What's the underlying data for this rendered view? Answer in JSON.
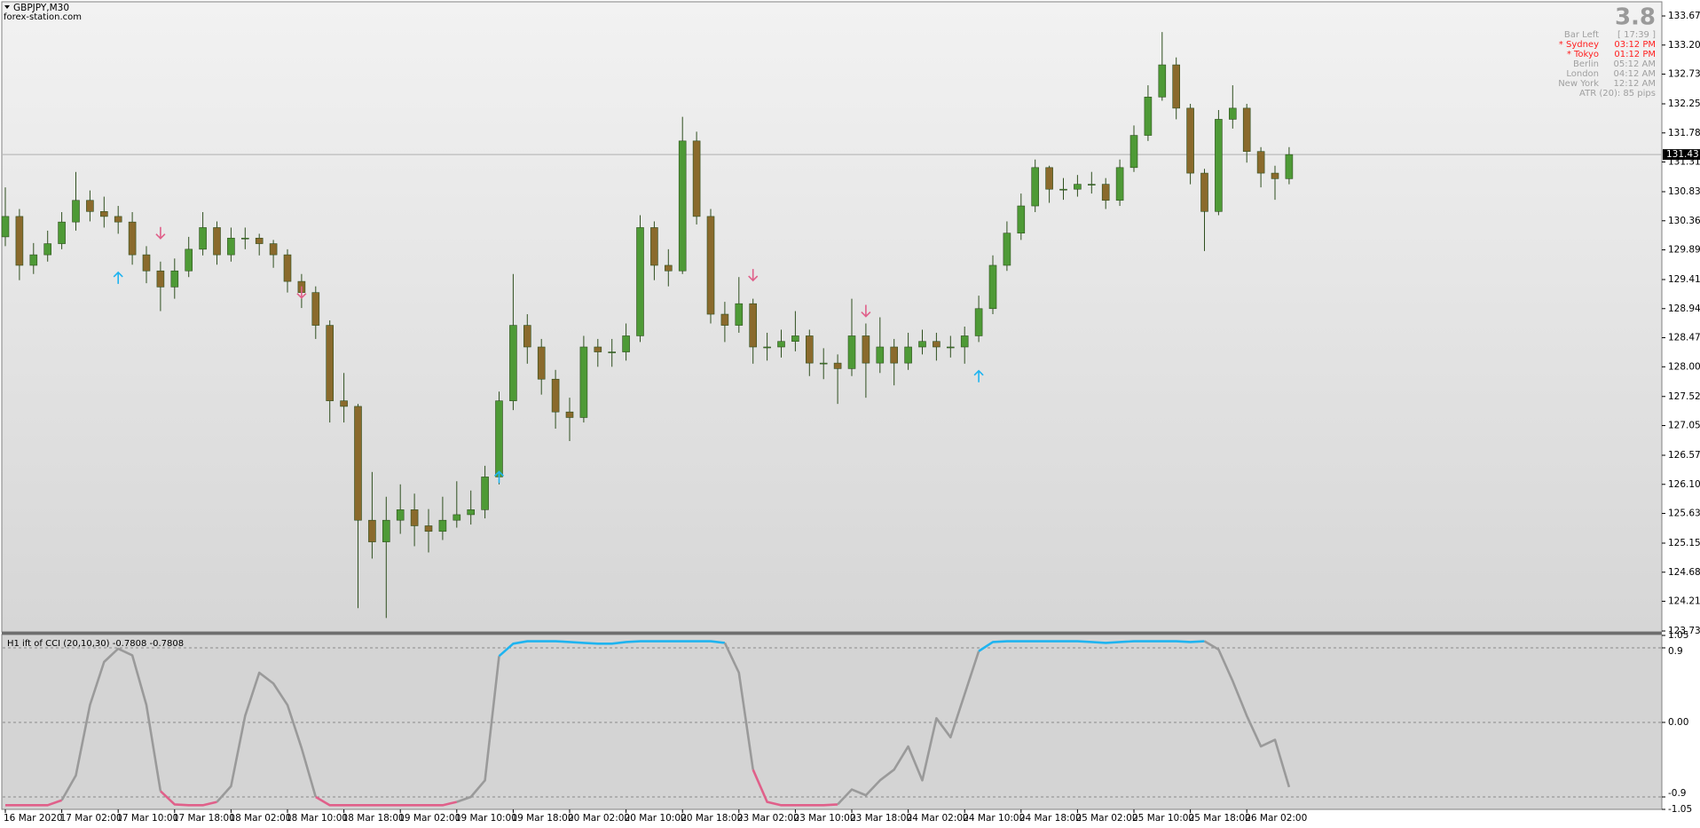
{
  "header": {
    "symbol": "GBPJPY,M30",
    "site": "forex-station.com"
  },
  "info_panel": {
    "countdown": "3.8",
    "rows": [
      {
        "label": "Bar Left",
        "time": "[ 17:39 ]",
        "color": "#a0a0a0"
      },
      {
        "label": "* Sydney",
        "time": "03:12 PM",
        "color": "#ff2020"
      },
      {
        "label": "* Tokyo",
        "time": "01:12 PM",
        "color": "#ff2020"
      },
      {
        "label": "Berlin",
        "time": "05:12 AM",
        "color": "#a0a0a0"
      },
      {
        "label": "London",
        "time": "04:12 AM",
        "color": "#a0a0a0"
      },
      {
        "label": "New York",
        "time": "12:12 AM",
        "color": "#a0a0a0"
      }
    ],
    "footer": "ATR (20): 85 pips"
  },
  "chart_data": [
    {
      "type": "candlestick",
      "categories": [
        "16 Mar 2020",
        null,
        null,
        null,
        "17 Mar 02:00",
        null,
        null,
        null,
        "17 Mar 10:00",
        null,
        null,
        null,
        "17 Mar 18:00",
        null,
        null,
        null,
        "18 Mar 02:00",
        null,
        null,
        null,
        "18 Mar 10:00",
        null,
        null,
        null,
        "18 Mar 18:00",
        null,
        null,
        null,
        "19 Mar 02:00",
        null,
        null,
        null,
        "19 Mar 10:00",
        null,
        null,
        null,
        "19 Mar 18:00",
        null,
        null,
        null,
        "20 Mar 02:00",
        null,
        null,
        null,
        "20 Mar 10:00",
        null,
        null,
        null,
        "20 Mar 18:00",
        null,
        null,
        null,
        "23 Mar 02:00",
        null,
        null,
        null,
        "23 Mar 10:00",
        null,
        null,
        null,
        "23 Mar 18:00",
        null,
        null,
        null,
        "24 Mar 02:00",
        null,
        null,
        null,
        "24 Mar 10:00",
        null,
        null,
        null,
        "24 Mar 18:00",
        null,
        null,
        null,
        "25 Mar 02:00",
        null,
        null,
        null,
        "25 Mar 10:00",
        null,
        null,
        null,
        "25 Mar 18:00",
        null,
        null,
        null,
        "26 Mar 02:00",
        null,
        null,
        null
      ],
      "open": [
        130.1,
        130.43,
        129.64,
        129.81,
        129.99,
        130.34,
        130.69,
        130.51,
        130.43,
        130.34,
        129.81,
        129.55,
        129.29,
        129.55,
        129.9,
        130.25,
        129.81,
        130.08,
        130.08,
        129.99,
        129.81,
        129.38,
        129.2,
        128.67,
        127.45,
        127.36,
        125.52,
        125.17,
        125.52,
        125.69,
        125.43,
        125.34,
        125.52,
        125.61,
        125.69,
        126.22,
        127.45,
        128.67,
        128.32,
        127.8,
        127.27,
        127.18,
        128.32,
        128.24,
        128.24,
        128.5,
        130.25,
        129.64,
        129.55,
        131.65,
        130.43,
        128.85,
        128.67,
        129.02,
        128.32,
        128.32,
        128.41,
        128.5,
        128.06,
        128.06,
        127.97,
        128.5,
        128.06,
        128.32,
        128.06,
        128.32,
        128.41,
        128.32,
        128.32,
        128.5,
        128.94,
        129.64,
        130.16,
        130.6,
        131.22,
        130.87,
        130.87,
        130.95,
        130.95,
        130.69,
        131.22,
        131.74,
        132.36,
        132.88,
        132.18,
        131.13,
        130.51,
        132.0,
        132.18,
        131.48,
        131.13,
        131.04
      ],
      "high": [
        130.9,
        130.55,
        130.0,
        130.2,
        130.5,
        131.15,
        130.85,
        130.75,
        130.6,
        130.5,
        129.95,
        129.7,
        129.75,
        130.1,
        130.5,
        130.35,
        130.25,
        130.25,
        130.15,
        130.05,
        129.9,
        129.5,
        129.3,
        128.75,
        127.9,
        127.4,
        126.3,
        125.9,
        126.1,
        125.95,
        125.7,
        125.9,
        126.15,
        126.0,
        126.4,
        127.6,
        129.5,
        128.85,
        128.45,
        127.95,
        127.5,
        128.5,
        128.45,
        128.45,
        128.7,
        130.45,
        130.35,
        129.9,
        132.04,
        131.8,
        130.55,
        129.05,
        129.45,
        129.1,
        128.55,
        128.6,
        128.9,
        128.6,
        128.3,
        128.2,
        129.1,
        128.7,
        128.8,
        128.45,
        128.55,
        128.6,
        128.55,
        128.5,
        128.65,
        129.15,
        129.8,
        130.35,
        130.8,
        131.35,
        131.25,
        131.05,
        131.1,
        131.15,
        131.05,
        131.35,
        131.9,
        132.55,
        133.41,
        133.0,
        132.25,
        131.2,
        132.15,
        132.55,
        132.25,
        131.55,
        131.25,
        131.55
      ],
      "low": [
        129.95,
        129.4,
        129.5,
        129.7,
        129.9,
        130.2,
        130.35,
        130.25,
        130.15,
        129.65,
        129.35,
        128.9,
        129.1,
        129.45,
        129.8,
        129.65,
        129.7,
        129.9,
        129.8,
        129.6,
        129.2,
        128.95,
        128.45,
        127.1,
        127.1,
        124.1,
        124.9,
        123.94,
        125.3,
        125.1,
        125.0,
        125.2,
        125.4,
        125.45,
        125.55,
        126.1,
        127.3,
        128.05,
        127.55,
        127.0,
        126.8,
        127.1,
        128.0,
        128.0,
        128.1,
        128.4,
        129.4,
        129.3,
        129.5,
        130.3,
        128.7,
        128.4,
        128.55,
        128.05,
        128.1,
        128.15,
        128.25,
        127.85,
        127.8,
        127.4,
        127.85,
        127.5,
        127.9,
        127.7,
        127.95,
        128.2,
        128.1,
        128.15,
        128.05,
        128.4,
        128.85,
        129.55,
        130.05,
        130.5,
        130.65,
        130.7,
        130.75,
        130.8,
        130.55,
        130.6,
        131.15,
        131.65,
        132.3,
        132.0,
        130.95,
        129.87,
        130.45,
        131.85,
        131.3,
        130.9,
        130.7,
        130.95
      ],
      "close": [
        130.43,
        129.64,
        129.81,
        129.99,
        130.34,
        130.69,
        130.51,
        130.43,
        130.34,
        129.81,
        129.55,
        129.29,
        129.55,
        129.9,
        130.25,
        129.81,
        130.08,
        130.08,
        129.99,
        129.81,
        129.38,
        129.2,
        128.67,
        127.45,
        127.36,
        125.52,
        125.17,
        125.52,
        125.69,
        125.43,
        125.34,
        125.52,
        125.61,
        125.69,
        126.22,
        127.45,
        128.67,
        128.32,
        127.8,
        127.27,
        127.18,
        128.32,
        128.24,
        128.24,
        128.5,
        130.25,
        129.64,
        129.55,
        131.65,
        130.43,
        128.85,
        128.67,
        129.02,
        128.32,
        128.32,
        128.41,
        128.5,
        128.06,
        128.06,
        127.97,
        128.5,
        128.06,
        128.32,
        128.06,
        128.32,
        128.41,
        128.32,
        128.32,
        128.5,
        128.94,
        129.64,
        130.16,
        130.6,
        131.22,
        130.87,
        130.87,
        130.95,
        130.95,
        130.69,
        131.22,
        131.74,
        132.36,
        132.88,
        132.18,
        131.13,
        130.51,
        132.0,
        132.18,
        131.48,
        131.13,
        131.04,
        131.43
      ],
      "color_up": "#4e9a36",
      "color_down": "#8a6a2c",
      "ylim": [
        123.73,
        133.67
      ],
      "yticks": [
        {
          "value": 133.67,
          "label": "133.670"
        },
        {
          "value": 133.2,
          "label": "133.200"
        },
        {
          "value": 132.73,
          "label": "132.730"
        },
        {
          "value": 132.25,
          "label": "132.250"
        },
        {
          "value": 131.78,
          "label": "131.780"
        },
        {
          "value": 131.31,
          "label": "131.310"
        },
        {
          "value": 130.83,
          "label": "130.830"
        },
        {
          "value": 130.36,
          "label": "130.360"
        },
        {
          "value": 129.89,
          "label": "129.890"
        },
        {
          "value": 129.41,
          "label": "129.410"
        },
        {
          "value": 128.94,
          "label": "128.940"
        },
        {
          "value": 128.47,
          "label": "128.470"
        },
        {
          "value": 128.0,
          "label": "128.000"
        },
        {
          "value": 127.52,
          "label": "127.520"
        },
        {
          "value": 127.05,
          "label": "127.050"
        },
        {
          "value": 126.57,
          "label": "126.570"
        },
        {
          "value": 126.1,
          "label": "126.100"
        },
        {
          "value": 125.63,
          "label": "125.630"
        },
        {
          "value": 125.15,
          "label": "125.150"
        },
        {
          "value": 124.68,
          "label": "124.680"
        },
        {
          "value": 124.21,
          "label": "124.210"
        },
        {
          "value": 123.73,
          "label": "123.730"
        }
      ],
      "current_price": {
        "value": 131.431,
        "label": "131.431"
      },
      "arrows_up": {
        "x": [
          8,
          35,
          69
        ],
        "values": [
          129.44,
          126.22,
          127.85
        ],
        "color": "#1fb4f0"
      },
      "arrows_down": {
        "x": [
          11,
          21,
          53,
          61
        ],
        "values": [
          130.16,
          129.2,
          129.48,
          128.9
        ],
        "color": "#e0608a"
      }
    },
    {
      "type": "line",
      "title": "H1 ift of CCI (20,10,30) -0.7808 -0.7808",
      "values": [
        -1.0,
        -1.0,
        -1.0,
        -1.0,
        -0.94,
        -0.64,
        0.21,
        0.73,
        0.89,
        0.81,
        0.21,
        -0.83,
        -0.99,
        -1.0,
        -1.0,
        -0.96,
        -0.77,
        0.08,
        0.6,
        0.47,
        0.21,
        -0.31,
        -0.9,
        -1.0,
        -1.0,
        -1.0,
        -1.0,
        -1.0,
        -1.0,
        -1.0,
        -1.0,
        -1.0,
        -0.96,
        -0.9,
        -0.7,
        0.8,
        0.95,
        0.98,
        0.98,
        0.98,
        0.97,
        0.96,
        0.95,
        0.95,
        0.97,
        0.98,
        0.98,
        0.98,
        0.98,
        0.98,
        0.98,
        0.96,
        0.6,
        -0.57,
        -0.96,
        -1.0,
        -1.0,
        -1.0,
        -1.0,
        -0.99,
        -0.81,
        -0.88,
        -0.7,
        -0.57,
        -0.29,
        -0.7,
        0.05,
        -0.18,
        0.34,
        0.86,
        0.97,
        0.98,
        0.98,
        0.98,
        0.98,
        0.98,
        0.98,
        0.97,
        0.96,
        0.97,
        0.98,
        0.98,
        0.98,
        0.98,
        0.97,
        0.98,
        0.88,
        0.5,
        0.08,
        -0.29,
        -0.21,
        -0.7808
      ],
      "color": "#9a9a9a",
      "color_up": "#1fb4f0",
      "color_down": "#e0608a",
      "ylim": [
        -1.05,
        1.05
      ],
      "yticks": [
        1.05,
        0.9,
        {
          "value": 0,
          "label": "0.00"
        },
        -0.9,
        -1.05
      ],
      "levels": [
        0.9,
        0,
        -0.9
      ]
    }
  ]
}
